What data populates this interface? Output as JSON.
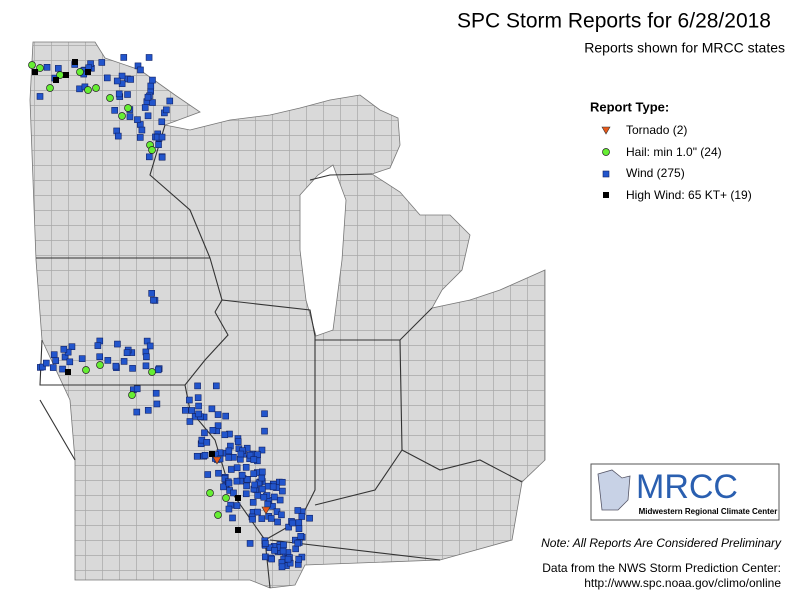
{
  "header": {
    "title": "SPC Storm Reports for 6/28/2018",
    "subtitle": "Reports shown for MRCC states"
  },
  "legend": {
    "title": "Report Type:",
    "items": [
      "Tornado (2)",
      "Hail: min 1.0\" (24)",
      "Wind (275)",
      "High Wind: 65 KT+ (19)"
    ]
  },
  "logo": {
    "name": "MRCC",
    "full_name": "Midwestern Regional Climate Center"
  },
  "footer": {
    "note": "Note: All Reports Are Considered Preliminary",
    "source": "Data from the NWS Storm Prediction Center:",
    "url": "http://www.spc.noaa.gov/climo/online"
  }
}
